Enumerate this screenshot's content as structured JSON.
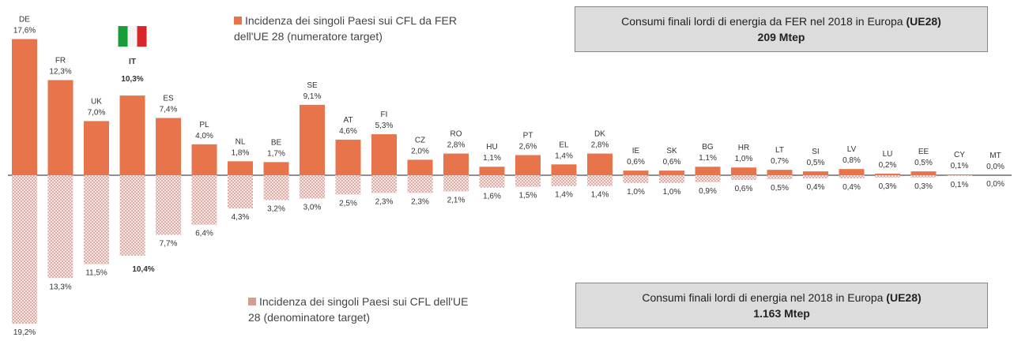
{
  "chart_data": {
    "type": "diverging-bar",
    "categories": [
      "DE",
      "FR",
      "UK",
      "IT",
      "ES",
      "PL",
      "NL",
      "BE",
      "SE",
      "AT",
      "FI",
      "CZ",
      "RO",
      "HU",
      "PT",
      "EL",
      "DK",
      "IE",
      "SK",
      "BG",
      "HR",
      "LT",
      "SI",
      "LV",
      "LU",
      "EE",
      "CY",
      "MT"
    ],
    "highlight": "IT",
    "highlight_color": "#e8312b",
    "series": [
      {
        "name": "Incidenza dei singoli Paesi sui CFL da FER dell'UE 28 (numeratore target)",
        "color": "#e8744c",
        "direction": "up",
        "values": [
          17.6,
          12.3,
          7.0,
          10.3,
          7.4,
          4.0,
          1.8,
          1.7,
          9.1,
          4.6,
          5.3,
          2.0,
          2.8,
          1.1,
          2.6,
          1.4,
          2.8,
          0.6,
          0.6,
          1.1,
          1.0,
          0.7,
          0.5,
          0.8,
          0.2,
          0.5,
          0.1,
          0.0
        ],
        "value_labels": [
          "17,6%",
          "12,3%",
          "7,0%",
          "10,3%",
          "7,4%",
          "4,0%",
          "1,8%",
          "1,7%",
          "9,1%",
          "4,6%",
          "5,3%",
          "2,0%",
          "2,8%",
          "1,1%",
          "2,6%",
          "1,4%",
          "2,8%",
          "0,6%",
          "0,6%",
          "1,1%",
          "1,0%",
          "0,7%",
          "0,5%",
          "0,8%",
          "0,2%",
          "0,5%",
          "0,1%",
          "0,0%"
        ]
      },
      {
        "name": "Incidenza dei singoli Paesi sui CFL dell'UE 28 (denominatore target)",
        "color": "#d99a92",
        "direction": "down",
        "values": [
          19.2,
          13.3,
          11.5,
          10.4,
          7.7,
          6.4,
          4.3,
          3.2,
          3.0,
          2.5,
          2.3,
          2.3,
          2.1,
          1.6,
          1.5,
          1.4,
          1.4,
          1.0,
          1.0,
          0.9,
          0.6,
          0.5,
          0.4,
          0.4,
          0.3,
          0.3,
          0.1,
          0.0
        ],
        "value_labels": [
          "19,2%",
          "13,3%",
          "11,5%",
          "10,4%",
          "7,7%",
          "6,4%",
          "4,3%",
          "3,2%",
          "3,0%",
          "2,5%",
          "2,3%",
          "2,3%",
          "2,1%",
          "1,6%",
          "1,5%",
          "1,4%",
          "1,4%",
          "1,0%",
          "1,0%",
          "0,9%",
          "0,6%",
          "0,5%",
          "0,4%",
          "0,4%",
          "0,3%",
          "0,3%",
          "0,1%",
          "0,0%"
        ]
      }
    ],
    "annotations": [
      {
        "text": "Consumi finali lordi di energia da FER nel 2018 in Europa",
        "bold": "(UE28)",
        "value": "209 Mtep"
      },
      {
        "text": "Consumi finali lordi di energia nel 2018 in Europa",
        "bold": "(UE28)",
        "value": "1.163 Mtep"
      }
    ]
  }
}
